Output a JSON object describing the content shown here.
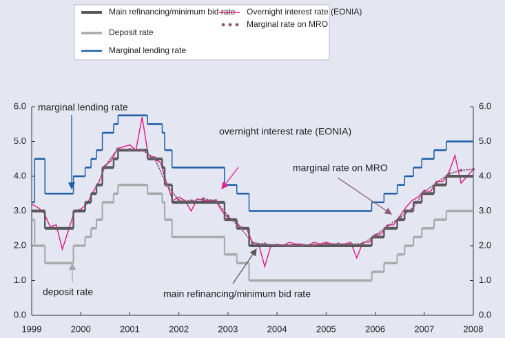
{
  "chart_data": {
    "type": "line",
    "xlim": [
      1999,
      2008
    ],
    "xticks": [
      1999,
      2000,
      2001,
      2002,
      2003,
      2004,
      2005,
      2006,
      2007,
      2008
    ],
    "ylim": [
      0,
      6
    ],
    "yticks": [
      {
        "value": 0,
        "label": "0.0"
      },
      {
        "value": 1,
        "label": "1.0"
      },
      {
        "value": 2,
        "label": "2.0"
      },
      {
        "value": 3,
        "label": "3.0"
      },
      {
        "value": 4,
        "label": "4.0"
      },
      {
        "value": 5,
        "label": "5.0"
      },
      {
        "value": 6,
        "label": "6.0"
      }
    ],
    "y2lim": [
      0,
      6
    ],
    "y2ticks": [
      {
        "value": 0,
        "label": "0.0"
      },
      {
        "value": 1,
        "label": "1.0"
      },
      {
        "value": 2,
        "label": "2.0"
      },
      {
        "value": 3,
        "label": "3.0"
      },
      {
        "value": 4,
        "label": "4.0"
      },
      {
        "value": 5,
        "label": "5.0"
      },
      {
        "value": 6,
        "label": "6.0"
      }
    ],
    "series": [
      {
        "name": "Main refinancing/minimum bid rate",
        "color": "#58585a",
        "style": "step",
        "width": 4,
        "x": [
          1999.0,
          1999.06,
          1999.27,
          1999.85,
          2000.09,
          2000.21,
          2000.32,
          2000.44,
          2000.67,
          2000.76,
          2001.36,
          2001.66,
          2001.71,
          2001.86,
          2002.93,
          2003.18,
          2003.43,
          2005.93,
          2006.18,
          2006.45,
          2006.6,
          2006.78,
          2006.95,
          2007.2,
          2007.45
        ],
        "values": [
          3.0,
          3.0,
          2.5,
          3.0,
          3.25,
          3.5,
          3.75,
          4.25,
          4.5,
          4.75,
          4.5,
          4.25,
          3.75,
          3.25,
          2.75,
          2.5,
          2.0,
          2.25,
          2.5,
          2.75,
          3.0,
          3.25,
          3.5,
          3.75,
          4.0
        ]
      },
      {
        "name": "Deposit rate",
        "color": "#a9a9ab",
        "style": "step",
        "width": 3.5,
        "x": [
          1999.0,
          1999.06,
          1999.27,
          1999.85,
          2000.09,
          2000.21,
          2000.32,
          2000.44,
          2000.67,
          2000.76,
          2001.36,
          2001.66,
          2001.71,
          2001.86,
          2002.93,
          2003.18,
          2003.43,
          2005.93,
          2006.18,
          2006.45,
          2006.6,
          2006.78,
          2006.95,
          2007.2,
          2007.45
        ],
        "values": [
          2.75,
          2.0,
          1.5,
          2.0,
          2.25,
          2.5,
          2.75,
          3.25,
          3.5,
          3.75,
          3.5,
          3.25,
          2.75,
          2.25,
          1.75,
          1.5,
          1.0,
          1.25,
          1.5,
          1.75,
          2.0,
          2.25,
          2.5,
          2.75,
          3.0
        ]
      },
      {
        "name": "Marginal lending rate",
        "color": "#1c5ea6",
        "style": "step",
        "width": 2.5,
        "x": [
          1999.0,
          1999.06,
          1999.27,
          1999.85,
          2000.09,
          2000.21,
          2000.32,
          2000.44,
          2000.67,
          2000.76,
          2001.36,
          2001.66,
          2001.71,
          2001.86,
          2002.93,
          2003.18,
          2003.43,
          2005.93,
          2006.18,
          2006.45,
          2006.6,
          2006.78,
          2006.95,
          2007.2,
          2007.45
        ],
        "values": [
          3.25,
          4.5,
          3.5,
          4.0,
          4.25,
          4.5,
          4.75,
          5.25,
          5.5,
          5.75,
          5.5,
          5.25,
          4.75,
          4.25,
          3.75,
          3.5,
          3.0,
          3.25,
          3.5,
          3.75,
          4.0,
          4.25,
          4.5,
          4.75,
          5.0
        ]
      },
      {
        "name": "Overnight interest rate (EONIA)",
        "color": "#e4218b",
        "style": "solid",
        "width": 1.5,
        "x": [
          1999.0,
          1999.125,
          1999.25,
          1999.375,
          1999.5,
          1999.625,
          1999.75,
          1999.875,
          2000.0,
          2000.125,
          2000.25,
          2000.375,
          2000.5,
          2000.625,
          2000.75,
          2000.875,
          2001.0,
          2001.125,
          2001.25,
          2001.375,
          2001.5,
          2001.625,
          2001.75,
          2001.875,
          2002.0,
          2002.125,
          2002.25,
          2002.375,
          2002.5,
          2002.625,
          2002.75,
          2002.875,
          2003.0,
          2003.125,
          2003.25,
          2003.375,
          2003.5,
          2003.625,
          2003.75,
          2003.875,
          2004.0,
          2004.125,
          2004.25,
          2004.375,
          2004.5,
          2004.625,
          2004.75,
          2004.875,
          2005.0,
          2005.125,
          2005.25,
          2005.375,
          2005.5,
          2005.625,
          2005.75,
          2005.875,
          2006.0,
          2006.125,
          2006.25,
          2006.375,
          2006.5,
          2006.625,
          2006.75,
          2006.875,
          2007.0,
          2007.125,
          2007.25,
          2007.375,
          2007.5,
          2007.625,
          2007.75,
          2007.875,
          2008.0
        ],
        "values": [
          3.2,
          3.1,
          2.95,
          2.55,
          2.6,
          1.9,
          2.45,
          3.0,
          3.05,
          3.2,
          3.55,
          3.85,
          4.3,
          4.45,
          4.8,
          4.85,
          4.9,
          4.75,
          5.7,
          4.6,
          4.5,
          4.4,
          3.8,
          3.3,
          3.4,
          3.3,
          3.0,
          3.35,
          3.3,
          3.3,
          3.3,
          3.0,
          2.8,
          2.75,
          2.55,
          2.5,
          2.1,
          2.05,
          1.4,
          2.0,
          2.05,
          2.0,
          2.1,
          2.05,
          2.05,
          2.0,
          2.1,
          2.05,
          2.1,
          2.05,
          2.05,
          2.05,
          2.1,
          1.65,
          2.1,
          2.1,
          2.3,
          2.35,
          2.6,
          2.6,
          2.85,
          3.1,
          3.3,
          3.4,
          3.6,
          3.55,
          3.85,
          3.85,
          4.1,
          4.6,
          3.8,
          4.0,
          4.2
        ]
      },
      {
        "name": "Marginal rate on MRO",
        "color": "#8c5a78",
        "style": "dots",
        "width": 2,
        "x": [
          2000.5,
          2000.75,
          2001.0,
          2001.25,
          2001.5,
          2001.75,
          2002.0,
          2002.25,
          2002.5,
          2002.75,
          2003.0,
          2003.25,
          2003.5,
          2003.75,
          2004.0,
          2004.25,
          2004.5,
          2004.75,
          2005.0,
          2005.25,
          2005.5,
          2005.75,
          2006.0,
          2006.25,
          2006.5,
          2006.75,
          2007.0,
          2007.25,
          2007.5,
          2007.75,
          2008.0
        ],
        "values": [
          4.29,
          4.78,
          4.77,
          4.75,
          4.53,
          3.76,
          3.3,
          3.29,
          3.35,
          3.3,
          2.86,
          2.52,
          2.08,
          2.05,
          2.02,
          2.0,
          2.01,
          2.02,
          2.05,
          2.05,
          2.05,
          2.06,
          2.3,
          2.56,
          2.81,
          3.05,
          3.55,
          3.81,
          4.07,
          4.17,
          4.2
        ]
      }
    ],
    "annotations": [
      "marginal lending rate",
      "overnight interest rate (EONIA)",
      "marginal rate on MRO",
      "deposit rate",
      "main refinancing/minimum bid rate"
    ]
  }
}
